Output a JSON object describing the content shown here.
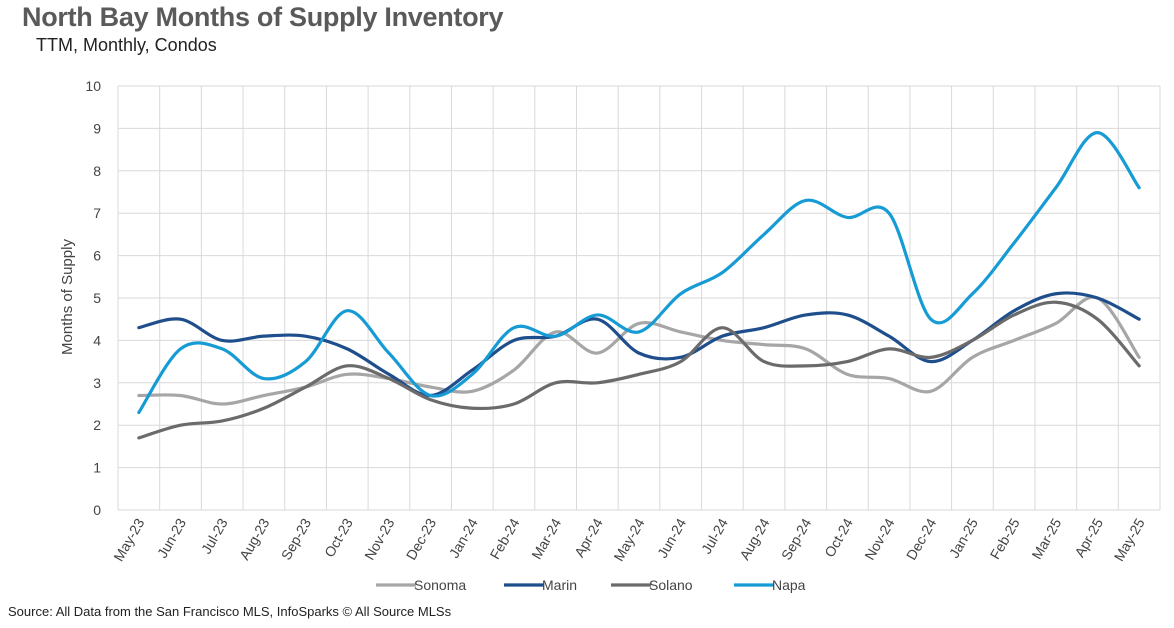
{
  "title": "North Bay Months of Supply Inventory",
  "subtitle": "TTM, Monthly, Condos",
  "source": "Source: All Data from the San Francisco MLS, InfoSparks © All Source MLSs",
  "chart_data": {
    "type": "line",
    "title": "North Bay Months of Supply Inventory",
    "subtitle": "TTM, Monthly, Condos",
    "xlabel": "",
    "ylabel": "Months of Supply",
    "ylim": [
      0,
      10
    ],
    "yticks": [
      0,
      1,
      2,
      3,
      4,
      5,
      6,
      7,
      8,
      9,
      10
    ],
    "grid": true,
    "legend_position": "bottom",
    "x": [
      "May-23",
      "Jun-23",
      "Jul-23",
      "Aug-23",
      "Sep-23",
      "Oct-23",
      "Nov-23",
      "Dec-23",
      "Jan-24",
      "Feb-24",
      "Mar-24",
      "Apr-24",
      "May-24",
      "Jun-24",
      "Jul-24",
      "Aug-24",
      "Sep-24",
      "Oct-24",
      "Nov-24",
      "Dec-24",
      "Jan-25",
      "Feb-25",
      "Mar-25",
      "Apr-25",
      "May-25"
    ],
    "series": [
      {
        "name": "Sonoma",
        "color": "#a6a6a6",
        "values": [
          2.7,
          2.7,
          2.5,
          2.7,
          2.9,
          3.2,
          3.1,
          2.9,
          2.8,
          3.3,
          4.2,
          3.7,
          4.4,
          4.2,
          4.0,
          3.9,
          3.8,
          3.2,
          3.1,
          2.8,
          3.6,
          4.0,
          4.4,
          5.0,
          3.6
        ]
      },
      {
        "name": "Marin",
        "color": "#1f4e8c",
        "values": [
          4.3,
          4.5,
          4.0,
          4.1,
          4.1,
          3.8,
          3.2,
          2.7,
          3.3,
          4.0,
          4.1,
          4.5,
          3.7,
          3.6,
          4.1,
          4.3,
          4.6,
          4.6,
          4.1,
          3.5,
          4.0,
          4.7,
          5.1,
          5.0,
          4.5
        ]
      },
      {
        "name": "Solano",
        "color": "#6b6b6b",
        "values": [
          1.7,
          2.0,
          2.1,
          2.4,
          2.9,
          3.4,
          3.1,
          2.6,
          2.4,
          2.5,
          3.0,
          3.0,
          3.2,
          3.5,
          4.3,
          3.5,
          3.4,
          3.5,
          3.8,
          3.6,
          4.0,
          4.6,
          4.9,
          4.5,
          3.4
        ]
      },
      {
        "name": "Napa",
        "color": "#169bd5",
        "values": [
          2.3,
          3.8,
          3.8,
          3.1,
          3.5,
          4.7,
          3.7,
          2.7,
          3.2,
          4.3,
          4.1,
          4.6,
          4.2,
          5.1,
          5.6,
          6.5,
          7.3,
          6.9,
          7.0,
          4.5,
          5.1,
          6.3,
          7.6,
          8.9,
          7.6
        ]
      }
    ]
  }
}
